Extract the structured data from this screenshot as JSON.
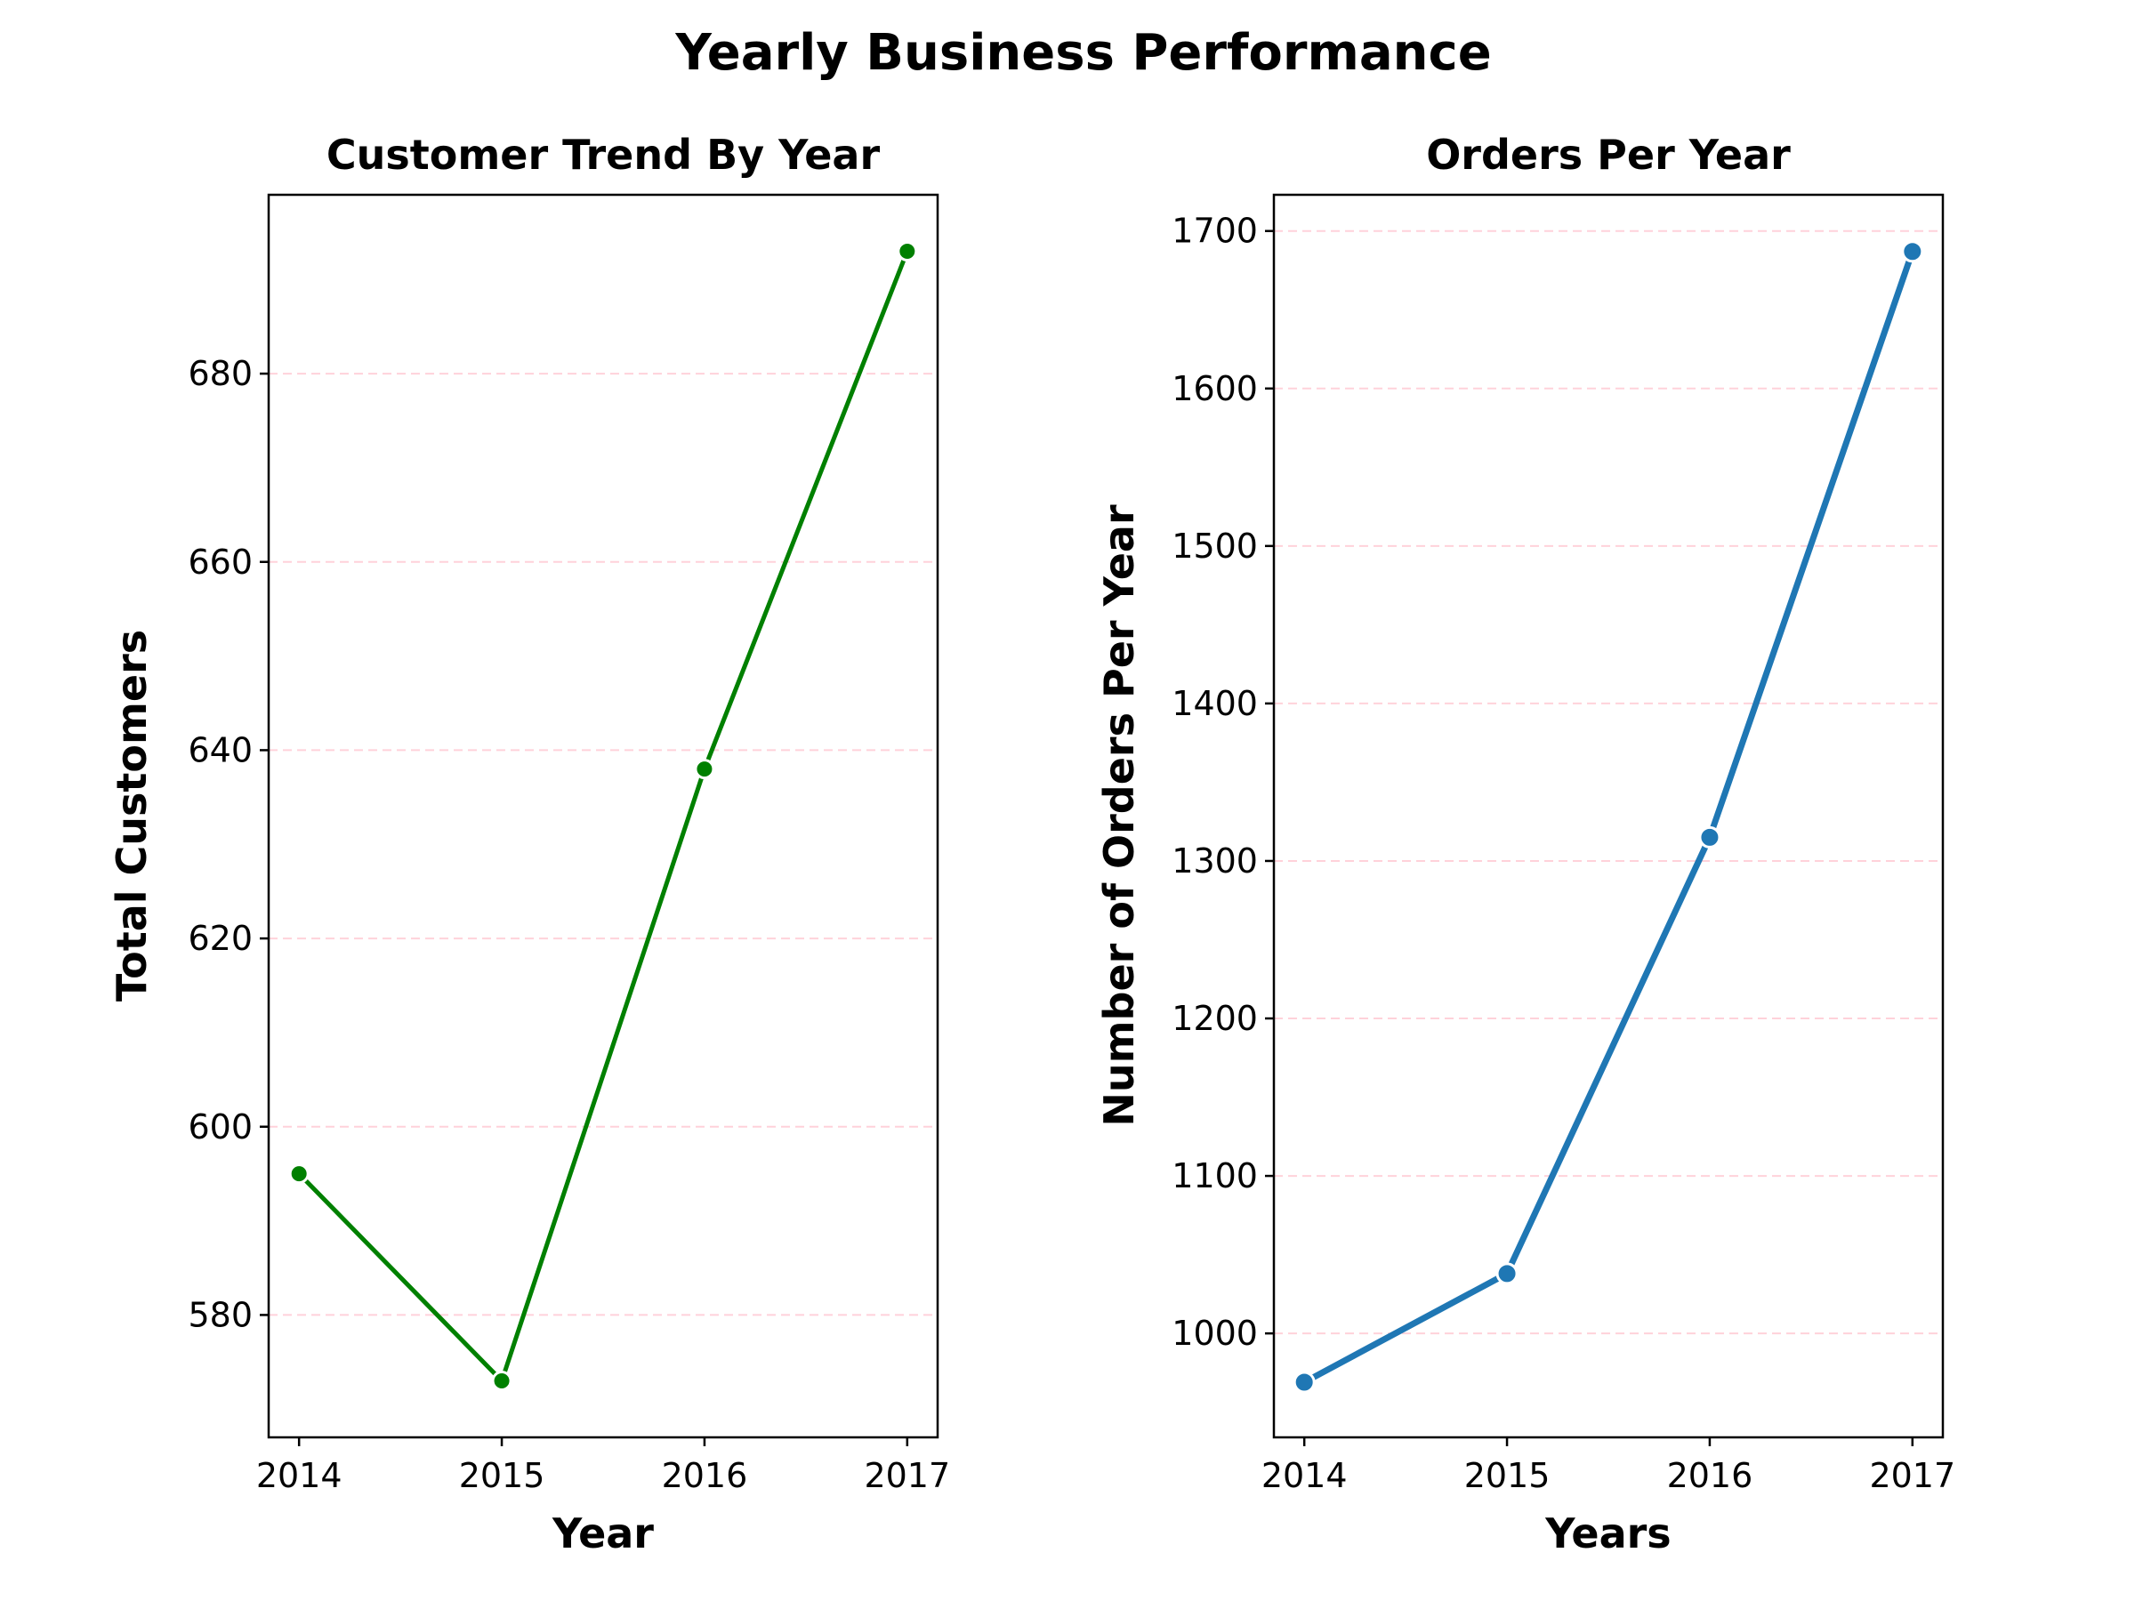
{
  "figure": {
    "suptitle": "Yearly Business Performance"
  },
  "chart_data": [
    {
      "type": "line",
      "title": "Customer Trend By Year",
      "xlabel": "Year",
      "ylabel": "Total Customers",
      "x": [
        2014,
        2015,
        2016,
        2017
      ],
      "x_tick_labels": [
        "2014",
        "2015",
        "2016",
        "2017"
      ],
      "y_ticks": [
        580,
        600,
        620,
        640,
        660,
        680
      ],
      "y_tick_labels": [
        "580",
        "600",
        "620",
        "640",
        "660",
        "680"
      ],
      "xlim": [
        2013.85,
        2017.15
      ],
      "ylim": [
        567,
        699
      ],
      "grid": "y dashed",
      "series": [
        {
          "values": [
            595,
            573,
            638,
            693
          ],
          "color": "#008000",
          "marker": "circle"
        }
      ]
    },
    {
      "type": "line",
      "title": "Orders Per Year",
      "xlabel": "Years",
      "ylabel": "Number of Orders Per Year",
      "x": [
        2014,
        2015,
        2016,
        2017
      ],
      "x_tick_labels": [
        "2014",
        "2015",
        "2016",
        "2017"
      ],
      "y_ticks": [
        1000,
        1100,
        1200,
        1300,
        1400,
        1500,
        1600,
        1700
      ],
      "y_tick_labels": [
        "1000",
        "1100",
        "1200",
        "1300",
        "1400",
        "1500",
        "1600",
        "1700"
      ],
      "xlim": [
        2013.85,
        2017.15
      ],
      "ylim": [
        934,
        1723
      ],
      "grid": "y dashed",
      "series": [
        {
          "values": [
            969,
            1038,
            1315,
            1687
          ],
          "color": "#1f77b4",
          "marker": "circle"
        }
      ]
    }
  ]
}
